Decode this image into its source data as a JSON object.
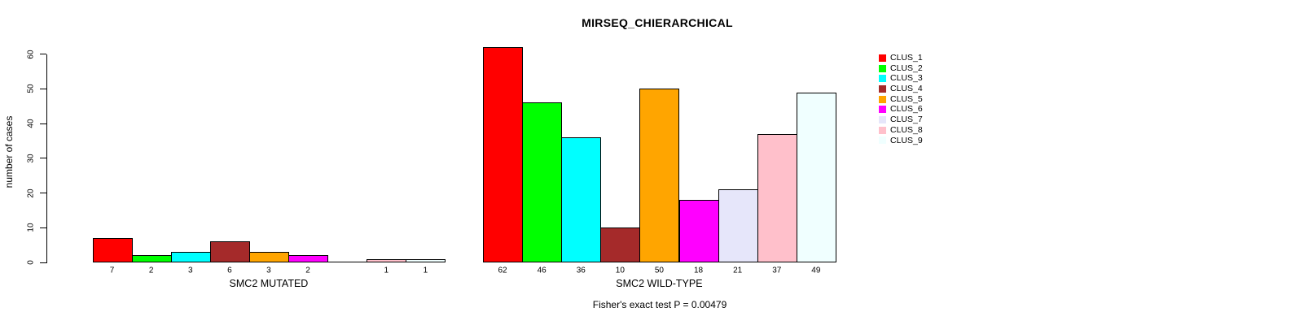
{
  "chart_data": {
    "type": "bar",
    "title": "MIRSEQ_CHIERARCHICAL",
    "ylabel": "number of cases",
    "ylim": [
      0,
      62
    ],
    "yticks": [
      0,
      10,
      20,
      30,
      40,
      50,
      60
    ],
    "grid": false,
    "legend_position": "right",
    "categories": [
      "CLUS_1",
      "CLUS_2",
      "CLUS_3",
      "CLUS_4",
      "CLUS_5",
      "CLUS_6",
      "CLUS_7",
      "CLUS_8",
      "CLUS_9"
    ],
    "colors": [
      "#FF0000",
      "#00FF00",
      "#00FFFF",
      "#A52A2A",
      "#FFA500",
      "#FF00FF",
      "#E6E6FA",
      "#FFC0CB",
      "#F0FFFF"
    ],
    "series": [
      {
        "name": "SMC2 MUTATED",
        "values": [
          7,
          2,
          3,
          6,
          3,
          2,
          0,
          1,
          1
        ]
      },
      {
        "name": "SMC2 WILD-TYPE",
        "values": [
          62,
          46,
          36,
          10,
          50,
          18,
          21,
          37,
          49
        ]
      }
    ],
    "bar_value_labels_shown": true,
    "annotation": "Fisher's exact test P = 0.00479"
  }
}
